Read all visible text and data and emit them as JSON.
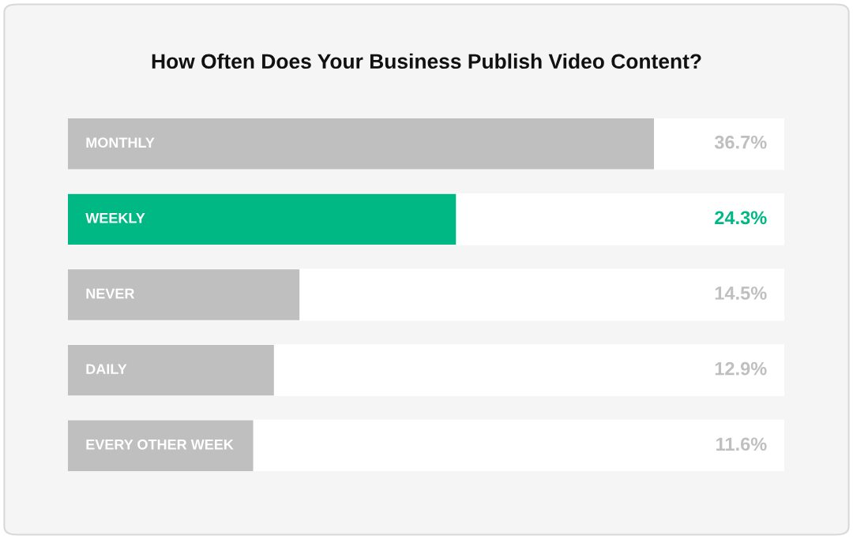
{
  "chart_data": {
    "type": "bar",
    "orientation": "horizontal",
    "title": "How Often Does Your Business Publish Video Content?",
    "categories": [
      "MONTHLY",
      "WEEKLY",
      "NEVER",
      "DAILY",
      "EVERY OTHER WEEK"
    ],
    "values": [
      36.7,
      24.3,
      14.5,
      12.9,
      11.6
    ],
    "colors": [
      "#bfbfbf",
      "#00b884",
      "#bfbfbf",
      "#bfbfbf",
      "#bfbfbf"
    ],
    "value_labels": [
      "36.7%",
      "24.3%",
      "14.5%",
      "12.9%",
      "11.6%"
    ]
  }
}
